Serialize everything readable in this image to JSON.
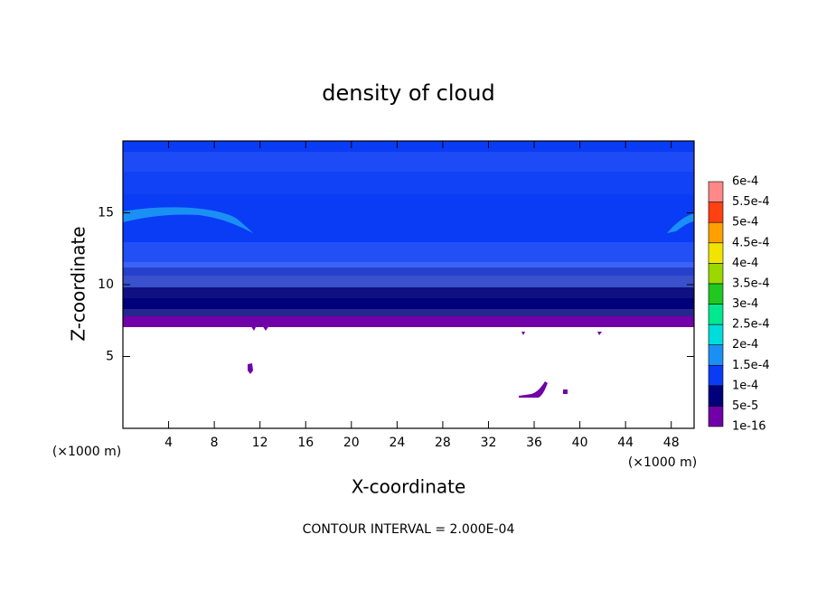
{
  "chart_data": {
    "type": "contour",
    "title": "density of cloud",
    "x_label": "X-coordinate",
    "y_label": "Z-coordinate",
    "x_unit": "(×1000 m)",
    "y_unit": "(×1000 m)",
    "footer": "CONTOUR INTERVAL = 2.000E-04",
    "xlim": [
      0,
      50
    ],
    "xticks": [
      4,
      8,
      12,
      16,
      20,
      24,
      28,
      32,
      36,
      40,
      44,
      48
    ],
    "ylim": [
      0,
      20
    ],
    "yticks": [
      5,
      10,
      15
    ],
    "colorbar": {
      "ticks": [
        1e-16,
        {
          "value": 5e-05,
          "label": "5e-5"
        },
        {
          "value": 0.0001,
          "label": "1e-4"
        },
        {
          "value": 0.00015,
          "label": "1.5e-4"
        },
        {
          "value": 0.0002,
          "label": "2e-4"
        },
        {
          "value": 0.00025,
          "label": "2.5e-4"
        },
        {
          "value": 0.0003,
          "label": "3e-4"
        },
        {
          "value": 0.00035,
          "label": "3.5e-4"
        },
        {
          "value": 0.0004,
          "label": "4e-4"
        },
        {
          "value": 0.00045,
          "label": "4.5e-4"
        },
        {
          "value": 0.0005,
          "label": "5e-4"
        },
        {
          "value": 0.00055,
          "label": "5.5e-4"
        },
        {
          "value": 0.0006,
          "label": "6e-4"
        }
      ],
      "colors": [
        "#7000a8",
        "#00007a",
        "#0a3cf5",
        "#1a90f5",
        "#00dcdc",
        "#00e890",
        "#20c820",
        "#9ad800",
        "#f0e400",
        "#ffa000",
        "#ff4010",
        "#ff8888"
      ]
    }
  }
}
